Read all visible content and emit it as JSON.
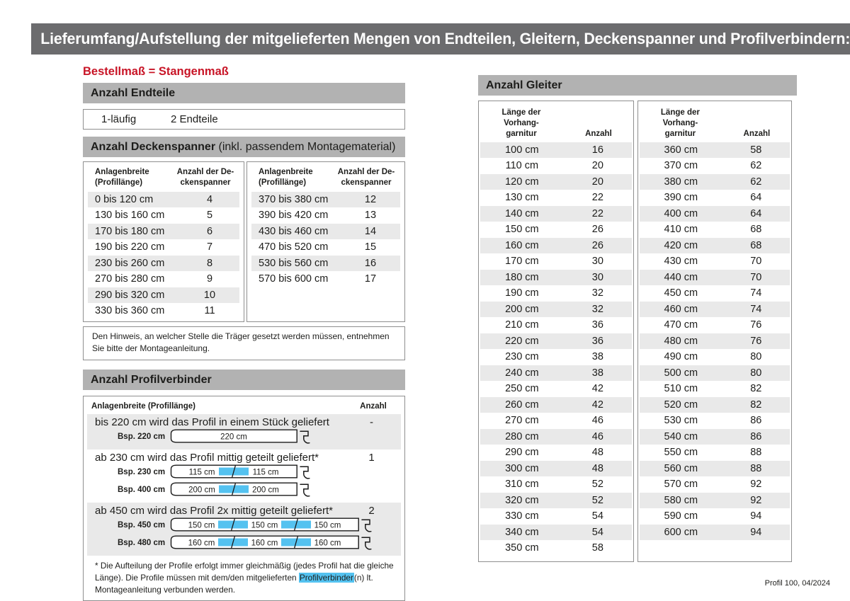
{
  "page": {
    "title": "Lieferumfang/Aufstellung der mitgelieferten Mengen von Endteilen, Gleitern, Deckenspanner und Profilverbindern:",
    "footer": "Profil 100, 04/2024",
    "colors": {
      "header_bg": "#6c6c6e",
      "section_bg": "#b2b2b2",
      "row_alt": "#e9e9e9",
      "accent_red": "#c81426",
      "connector_blue": "#54c2f0"
    }
  },
  "left": {
    "order_note": "Bestellmaß = Stangenmaß",
    "endteile": {
      "title": "Anzahl Endteile",
      "row": {
        "type": "1-läufig",
        "value": "2 Endteile"
      }
    },
    "deckenspanner": {
      "title_bold": "Anzahl Deckenspanner",
      "title_rest": " (inkl. passendem Montagematerial)",
      "col1_header": [
        "Anlagenbreite",
        "(Profillänge)"
      ],
      "col2_header": [
        "Anzahl der De-",
        "ckenspanner"
      ],
      "table1": [
        [
          "0 bis 120 cm",
          "4"
        ],
        [
          "130 bis 160 cm",
          "5"
        ],
        [
          "170 bis 180 cm",
          "6"
        ],
        [
          "190 bis 220 cm",
          "7"
        ],
        [
          "230 bis 260 cm",
          "8"
        ],
        [
          "270 bis 280 cm",
          "9"
        ],
        [
          "290 bis 320 cm",
          "10"
        ],
        [
          "330 bis 360 cm",
          "11"
        ]
      ],
      "table2": [
        [
          "370 bis 380 cm",
          "12"
        ],
        [
          "390 bis 420 cm",
          "13"
        ],
        [
          "430 bis 460 cm",
          "14"
        ],
        [
          "470 bis 520 cm",
          "15"
        ],
        [
          "530 bis 560 cm",
          "16"
        ],
        [
          "570 bis 600 cm",
          "17"
        ]
      ],
      "note": "Den Hinweis, an welcher Stelle die Träger gesetzt werden müssen, entnehmen Sie bitte der Montageanleitung."
    },
    "profilverbinder": {
      "title": "Anzahl Profilverbinder",
      "col1_header": "Anlagenbreite (Profillänge)",
      "col2_header": "Anzahl",
      "rows": [
        {
          "text": "bis 220 cm wird das Profil in einem Stück geliefert",
          "anzahl": "-",
          "examples": [
            {
              "label": "Bsp. 220 cm",
              "segments": [
                "220 cm"
              ]
            }
          ]
        },
        {
          "text": "ab 230 cm wird das Profil mittig geteilt geliefert*",
          "anzahl": "1",
          "examples": [
            {
              "label": "Bsp. 230 cm",
              "segments": [
                "115 cm",
                "115 cm"
              ]
            },
            {
              "label": "Bsp. 400 cm",
              "segments": [
                "200 cm",
                "200 cm"
              ]
            }
          ]
        },
        {
          "text": "ab 450 cm wird das Profil 2x mittig geteilt geliefert*",
          "anzahl": "2",
          "examples": [
            {
              "label": "Bsp. 450 cm",
              "segments": [
                "150 cm",
                "150 cm",
                "150 cm"
              ]
            },
            {
              "label": "Bsp. 480 cm",
              "segments": [
                "160 cm",
                "160 cm",
                "160 cm"
              ]
            }
          ]
        }
      ],
      "footnote": {
        "before": "* Die Aufteilung der Profile erfolgt immer gleichmäßig (jedes Profil hat die gleiche Länge). Die Profile müssen mit dem/den mitgelieferten ",
        "highlight": "Profilverbinder",
        "after": "(n) lt. Montageanleitung verbunden werden."
      }
    }
  },
  "right": {
    "gleiter": {
      "title": "Anzahl Gleiter",
      "col1_header": [
        "Länge der",
        "Vorhang-",
        "garnitur"
      ],
      "col2_header": "Anzahl",
      "table1": [
        [
          "100 cm",
          "16"
        ],
        [
          "110 cm",
          "20"
        ],
        [
          "120 cm",
          "20"
        ],
        [
          "130 cm",
          "22"
        ],
        [
          "140 cm",
          "22"
        ],
        [
          "150 cm",
          "26"
        ],
        [
          "160 cm",
          "26"
        ],
        [
          "170 cm",
          "30"
        ],
        [
          "180 cm",
          "30"
        ],
        [
          "190 cm",
          "32"
        ],
        [
          "200 cm",
          "32"
        ],
        [
          "210 cm",
          "36"
        ],
        [
          "220 cm",
          "36"
        ],
        [
          "230 cm",
          "38"
        ],
        [
          "240 cm",
          "38"
        ],
        [
          "250 cm",
          "42"
        ],
        [
          "260 cm",
          "42"
        ],
        [
          "270 cm",
          "46"
        ],
        [
          "280 cm",
          "46"
        ],
        [
          "290 cm",
          "48"
        ],
        [
          "300 cm",
          "48"
        ],
        [
          "310 cm",
          "52"
        ],
        [
          "320 cm",
          "52"
        ],
        [
          "330 cm",
          "54"
        ],
        [
          "340 cm",
          "54"
        ],
        [
          "350 cm",
          "58"
        ]
      ],
      "table2": [
        [
          "360 cm",
          "58"
        ],
        [
          "370 cm",
          "62"
        ],
        [
          "380 cm",
          "62"
        ],
        [
          "390 cm",
          "64"
        ],
        [
          "400 cm",
          "64"
        ],
        [
          "410 cm",
          "68"
        ],
        [
          "420 cm",
          "68"
        ],
        [
          "430 cm",
          "70"
        ],
        [
          "440 cm",
          "70"
        ],
        [
          "450 cm",
          "74"
        ],
        [
          "460 cm",
          "74"
        ],
        [
          "470 cm",
          "76"
        ],
        [
          "480 cm",
          "76"
        ],
        [
          "490 cm",
          "80"
        ],
        [
          "500 cm",
          "80"
        ],
        [
          "510 cm",
          "82"
        ],
        [
          "520 cm",
          "82"
        ],
        [
          "530 cm",
          "86"
        ],
        [
          "540 cm",
          "86"
        ],
        [
          "550 cm",
          "88"
        ],
        [
          "560 cm",
          "88"
        ],
        [
          "570 cm",
          "92"
        ],
        [
          "580 cm",
          "92"
        ],
        [
          "590 cm",
          "94"
        ],
        [
          "600 cm",
          "94"
        ]
      ]
    }
  }
}
